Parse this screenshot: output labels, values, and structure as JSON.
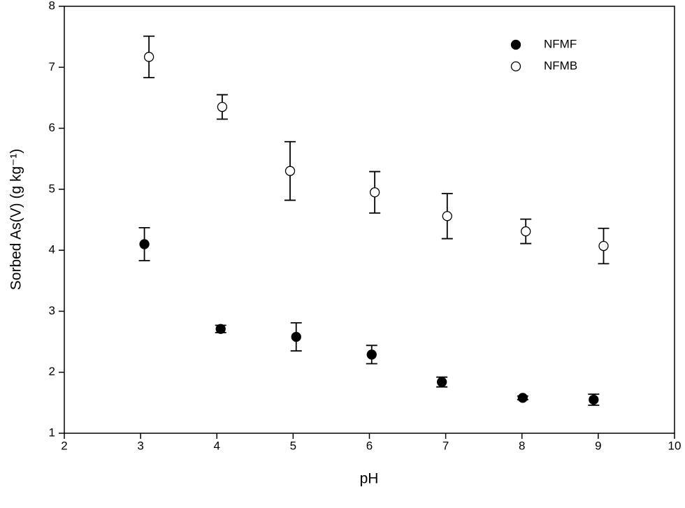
{
  "chart_data": {
    "type": "scatter",
    "x_label": "pH",
    "y_label": "Sorbed As(V) (g kg⁻¹)",
    "xlim": [
      2,
      10
    ],
    "xticks": [
      2,
      3,
      4,
      5,
      6,
      7,
      8,
      9,
      10
    ],
    "ylim": [
      1,
      8
    ],
    "yticks": [
      1,
      2,
      3,
      4,
      5,
      6,
      7,
      8
    ],
    "grid": false,
    "legend": "upper right",
    "series": [
      {
        "name": "NFMF",
        "color": "#000000",
        "filled": true,
        "x": [
          3.05,
          4.05,
          5.04,
          6.03,
          6.95,
          8.01,
          8.94
        ],
        "values": [
          4.1,
          2.71,
          2.58,
          2.29,
          1.84,
          1.58,
          1.55
        ],
        "errors": [
          0.27,
          0.06,
          0.23,
          0.15,
          0.08,
          0.03,
          0.09
        ]
      },
      {
        "name": "NFMB",
        "color": "#000000",
        "filled": false,
        "x": [
          3.11,
          4.07,
          4.96,
          6.07,
          7.02,
          8.05,
          9.07
        ],
        "values": [
          7.17,
          6.35,
          5.3,
          4.95,
          4.56,
          4.31,
          4.07
        ],
        "errors": [
          0.34,
          0.2,
          0.48,
          0.34,
          0.37,
          0.2,
          0.29
        ]
      }
    ]
  }
}
